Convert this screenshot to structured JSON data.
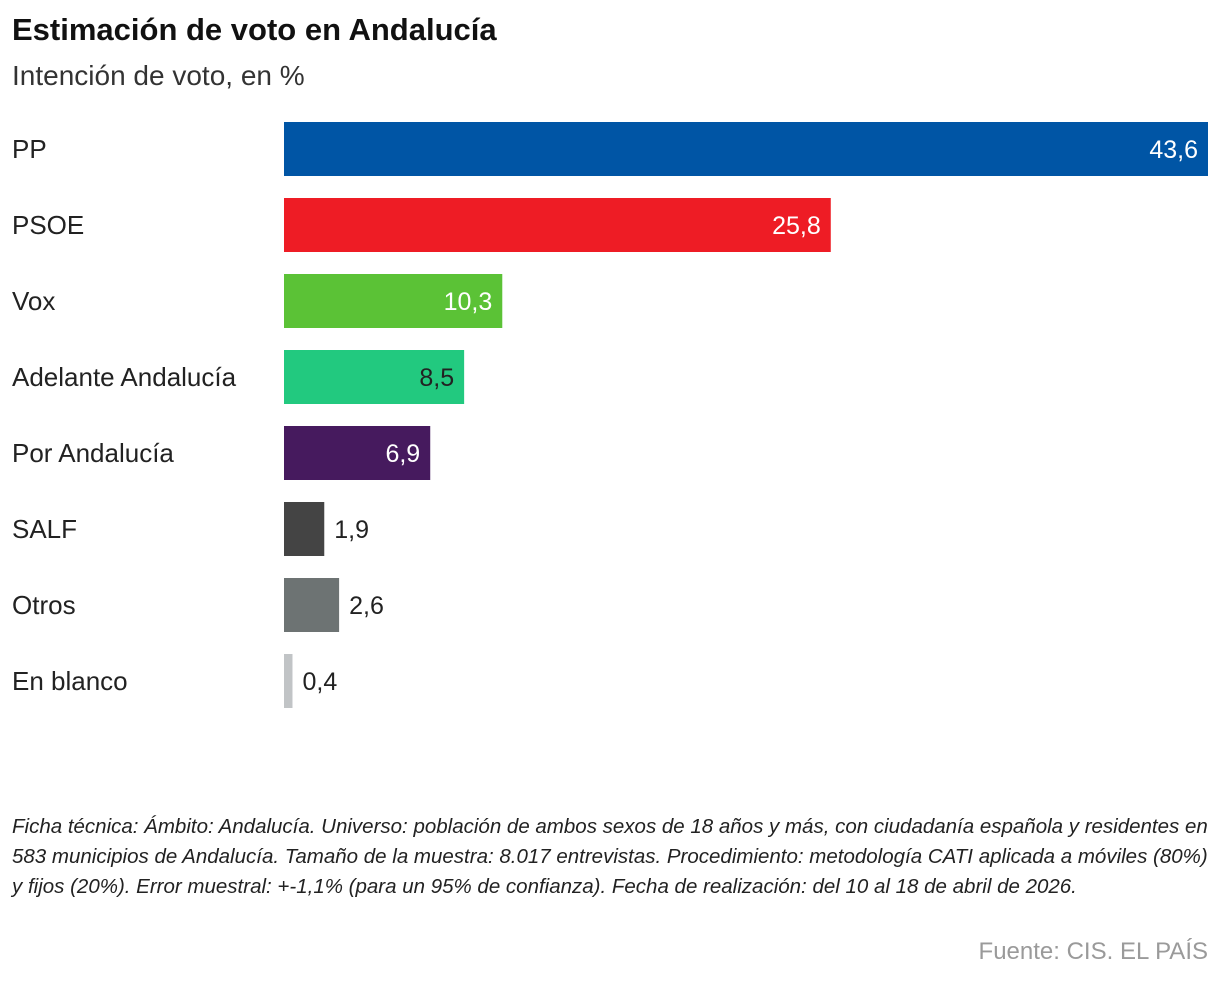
{
  "header": {
    "title": "Estimación de voto en Andalucía",
    "subtitle": "Intención de voto, en %"
  },
  "chart_data": {
    "type": "bar",
    "orientation": "horizontal",
    "title": "Estimación de voto en Andalucía",
    "subtitle": "Intención de voto, en %",
    "categories": [
      "PP",
      "PSOE",
      "Vox",
      "Adelante Andalucía",
      "Por Andalucía",
      "SALF",
      "Otros",
      "En blanco"
    ],
    "values": [
      43.6,
      25.8,
      10.3,
      8.5,
      6.9,
      1.9,
      2.6,
      0.4
    ],
    "value_labels": [
      "43,6",
      "25,8",
      "10,3",
      "8,5",
      "6,9",
      "1,9",
      "2,6",
      "0,4"
    ],
    "colors": [
      "#0055a5",
      "#ee1c25",
      "#5bc236",
      "#22c97f",
      "#461a5e",
      "#444444",
      "#6d7373",
      "#c1c4c6"
    ],
    "label_colors": [
      "#ffffff",
      "#ffffff",
      "#ffffff",
      "#222222",
      "#ffffff",
      "#222222",
      "#222222",
      "#222222"
    ],
    "xlim": [
      0,
      43.6
    ],
    "grid": false,
    "legend": "none"
  },
  "footer": {
    "note": "Ficha técnica: Ámbito: Andalucía. Universo: población de ambos sexos de 18 años y más, con ciudadanía española y residentes en 583 municipios de Andalucía. Tamaño de la muestra: 8.017 entrevistas. Procedimiento: metodología CATI aplicada a móviles (80%) y fijos (20%). Error muestral: +-1,1% (para un 95% de confianza). Fecha de realización: del 10 al 18 de abril de 2026.",
    "source": "Fuente: CIS. EL PAÍS"
  }
}
